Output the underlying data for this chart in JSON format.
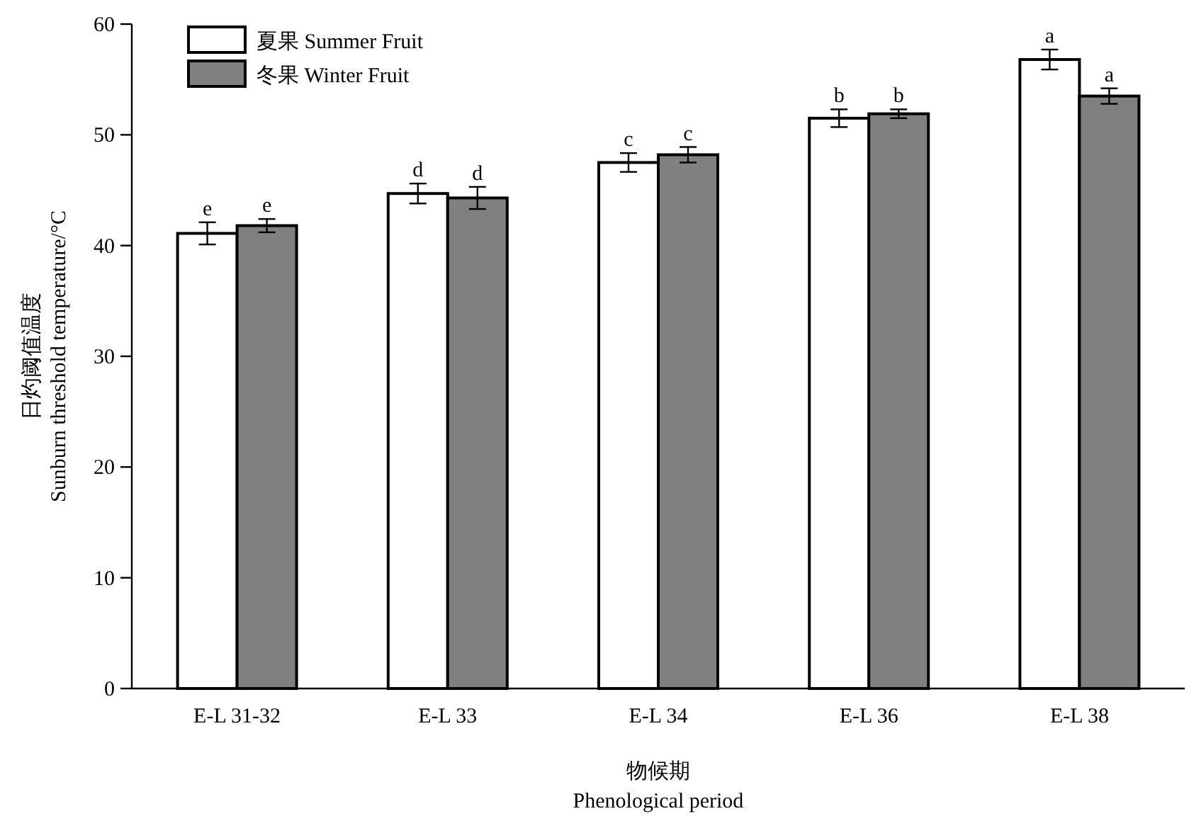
{
  "chart_data": {
    "type": "bar",
    "xlabel": "物候期\nPhenological period",
    "ylabel": "日灼阈值温度\nSunburn threshold temperature/°C",
    "categories": [
      "E-L 31-32",
      "E-L 33",
      "E-L 34",
      "E-L 36",
      "E-L 38"
    ],
    "series": [
      {
        "name": "夏果 Summer Fruit",
        "color": "#ffffff",
        "values": [
          41.1,
          44.7,
          47.5,
          51.5,
          56.8
        ],
        "errors": [
          1.0,
          0.9,
          0.85,
          0.8,
          0.9
        ],
        "value_labels": [
          "e",
          "d",
          "c",
          "b",
          "a"
        ]
      },
      {
        "name": "冬果 Winter Fruit",
        "color": "#808080",
        "values": [
          41.8,
          44.3,
          48.2,
          51.9,
          53.5
        ],
        "errors": [
          0.6,
          1.0,
          0.7,
          0.4,
          0.7
        ],
        "value_labels": [
          "e",
          "d",
          "c",
          "b",
          "a"
        ]
      }
    ],
    "ylim": [
      0,
      60
    ],
    "yticks": [
      0,
      10,
      20,
      30,
      40,
      50,
      60
    ],
    "grid": false,
    "legend": "top left"
  }
}
